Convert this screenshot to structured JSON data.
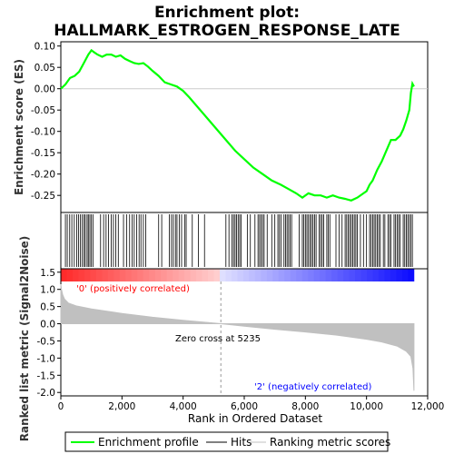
{
  "chart_data": [
    {
      "type": "line",
      "title_line1": "Enrichment plot:",
      "title_line2": "HALLMARK_ESTROGEN_RESPONSE_LATE",
      "ylabel": "Enrichment score (ES)",
      "ylim": [
        -0.29,
        0.11
      ],
      "yticks": [
        0.1,
        0.05,
        0.0,
        -0.05,
        -0.1,
        -0.15,
        -0.2,
        -0.25
      ],
      "ytick_labels": [
        "0.10",
        "0.05",
        "0.00",
        "-0.05",
        "-0.10",
        "-0.15",
        "-0.20",
        "-0.25"
      ],
      "xlim": [
        0,
        12000
      ],
      "color": "#00ff00",
      "series": [
        {
          "name": "Enrichment profile",
          "x": [
            0,
            150,
            300,
            450,
            600,
            750,
            900,
            1000,
            1100,
            1200,
            1350,
            1500,
            1650,
            1800,
            1950,
            2100,
            2250,
            2400,
            2550,
            2700,
            2850,
            3000,
            3200,
            3400,
            3600,
            3800,
            4000,
            4200,
            4500,
            4800,
            5100,
            5400,
            5700,
            6000,
            6300,
            6600,
            6900,
            7200,
            7450,
            7700,
            7900,
            8100,
            8300,
            8500,
            8700,
            8900,
            9100,
            9300,
            9500,
            9700,
            9900,
            10000,
            10100,
            10200,
            10350,
            10500,
            10650,
            10800,
            10950,
            11100,
            11200,
            11300,
            11400,
            11450,
            11500,
            11550
          ],
          "y": [
            0.0,
            0.01,
            0.025,
            0.03,
            0.04,
            0.06,
            0.08,
            0.09,
            0.085,
            0.08,
            0.075,
            0.08,
            0.08,
            0.075,
            0.078,
            0.07,
            0.065,
            0.06,
            0.058,
            0.06,
            0.052,
            0.042,
            0.03,
            0.015,
            0.01,
            0.005,
            -0.005,
            -0.02,
            -0.045,
            -0.07,
            -0.095,
            -0.12,
            -0.145,
            -0.165,
            -0.185,
            -0.2,
            -0.215,
            -0.225,
            -0.235,
            -0.245,
            -0.255,
            -0.245,
            -0.25,
            -0.25,
            -0.255,
            -0.25,
            -0.255,
            -0.258,
            -0.262,
            -0.255,
            -0.245,
            -0.24,
            -0.225,
            -0.215,
            -0.19,
            -0.17,
            -0.145,
            -0.12,
            -0.12,
            -0.11,
            -0.095,
            -0.075,
            -0.05,
            -0.01,
            0.012,
            0.005
          ]
        }
      ]
    },
    {
      "type": "area",
      "ylabel": "Ranked list metric (Signal2Noise)",
      "xlabel": "Rank in Ordered Dataset",
      "ylim": [
        -2.1,
        1.6
      ],
      "yticks": [
        1.5,
        1.0,
        0.5,
        0.0,
        -0.5,
        -1.0,
        -1.5,
        -2.0
      ],
      "ytick_labels": [
        "1.5",
        "1.0",
        "0.5",
        "0.0",
        "-0.5",
        "-1.0",
        "-1.5",
        "-2.0"
      ],
      "xticks": [
        0,
        2000,
        4000,
        6000,
        8000,
        10000,
        12000
      ],
      "xtick_labels": [
        "0",
        "2,000",
        "4,000",
        "6,000",
        "8,000",
        "10,000",
        "12,000"
      ],
      "x": [
        0,
        20,
        60,
        120,
        250,
        500,
        1000,
        2000,
        3000,
        4000,
        5000,
        5235,
        6000,
        7000,
        8000,
        9000,
        10000,
        10500,
        11000,
        11300,
        11450,
        11520,
        11550
      ],
      "y": [
        1.15,
        1.0,
        0.85,
        0.72,
        0.6,
        0.52,
        0.43,
        0.3,
        0.19,
        0.1,
        0.02,
        0.0,
        -0.07,
        -0.16,
        -0.24,
        -0.33,
        -0.45,
        -0.53,
        -0.65,
        -0.8,
        -0.95,
        -1.3,
        -1.95
      ],
      "zero_cross_label": "Zero cross at 5235",
      "zero_cross": 5235,
      "pos_label": "'0' (positively correlated)",
      "neg_label": "'2' (negatively correlated)",
      "pos_color": "#ff0000",
      "neg_color": "#0000ff",
      "fill_color": "#c0c0c0"
    }
  ],
  "hits": [
    150,
    210,
    290,
    360,
    440,
    520,
    580,
    640,
    700,
    760,
    800,
    860,
    900,
    950,
    1000,
    1050,
    1300,
    1400,
    1480,
    1560,
    1650,
    1720,
    1800,
    1880,
    2050,
    2150,
    2250,
    2330,
    2400,
    2480,
    2560,
    2620,
    2700,
    2780,
    3200,
    3300,
    3550,
    3620,
    3680,
    3750,
    3800,
    3880,
    3950,
    4050,
    4100,
    4300,
    4500,
    4700,
    5400,
    5500,
    5600,
    5650,
    5700,
    5750,
    5800,
    5850,
    5900,
    6100,
    6200,
    6350,
    6450,
    6500,
    6550,
    6600,
    6650,
    6750,
    6900,
    7000,
    7100,
    7150,
    7200,
    7300,
    7350,
    7400,
    7450,
    7500,
    7550,
    7800,
    7900,
    7950,
    8000,
    8050,
    8100,
    8150,
    8200,
    8250,
    8300,
    8350,
    8450,
    8500,
    8550,
    8600,
    8700,
    8750,
    8800,
    9000,
    9100,
    9200,
    9300,
    9350,
    9400,
    9450,
    9500,
    9550,
    9600,
    9650,
    9700,
    9800,
    9900,
    10000,
    10100,
    10150,
    10200,
    10250,
    10300,
    10350,
    10400,
    10450,
    10550,
    10600,
    10700,
    10750,
    10800,
    10900,
    10950,
    11000,
    11050,
    11100,
    11200,
    11250,
    11300,
    11350,
    11400,
    11450,
    11500
  ],
  "legend": {
    "items": [
      {
        "label": "Enrichment profile",
        "color": "#00ff00"
      },
      {
        "label": "Hits",
        "color": "#000000"
      },
      {
        "label": "Ranking metric scores",
        "color": "#c0c0c0"
      }
    ]
  }
}
